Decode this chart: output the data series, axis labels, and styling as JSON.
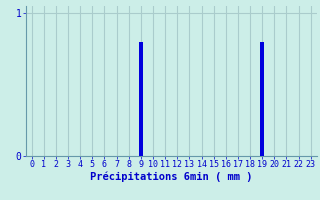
{
  "hours": [
    0,
    1,
    2,
    3,
    4,
    5,
    6,
    7,
    8,
    9,
    10,
    11,
    12,
    13,
    14,
    15,
    16,
    17,
    18,
    19,
    20,
    21,
    22,
    23
  ],
  "values": [
    0,
    0,
    0,
    0,
    0,
    0,
    0,
    0,
    0,
    0.8,
    0,
    0,
    0,
    0,
    0,
    0,
    0,
    0,
    0,
    0.8,
    0,
    0,
    0,
    0
  ],
  "bar_color": "#0000dd",
  "background_color": "#cceee8",
  "grid_color": "#aacccc",
  "axis_color": "#6699aa",
  "text_color": "#0000cc",
  "xlabel": "Précipitations 6min ( mm )",
  "ytick_labels": [
    "0",
    "1"
  ],
  "ytick_values": [
    0,
    1
  ],
  "ylim": [
    0,
    1.05
  ],
  "xlim": [
    -0.5,
    23.5
  ],
  "xlabel_fontsize": 7.5,
  "tick_fontsize": 6,
  "bar_width": 0.3
}
